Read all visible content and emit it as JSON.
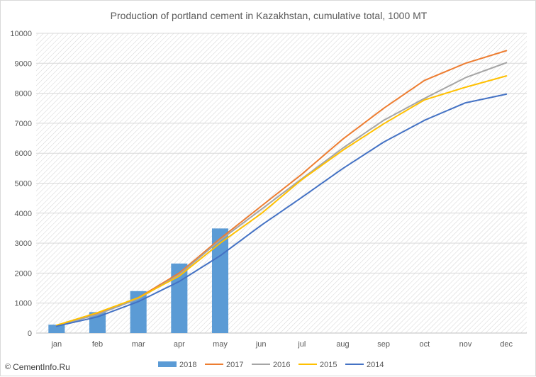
{
  "chart_data": {
    "type": "bar+line",
    "title": "Production of portland cement in Kazakhstan, cumulative total, 1000 MT",
    "categories": [
      "jan",
      "feb",
      "mar",
      "apr",
      "may",
      "jun",
      "jul",
      "aug",
      "sep",
      "oct",
      "nov",
      "dec"
    ],
    "ylim": [
      0,
      10000
    ],
    "yticks": [
      "0",
      "1000",
      "2000",
      "3000",
      "4000",
      "5000",
      "6000",
      "7000",
      "8000",
      "9000",
      "10000"
    ],
    "grid": "horizontal, hatched plot background",
    "legend_position": "bottom",
    "bar_series": {
      "name": "2018",
      "color": "#5b9bd5",
      "values": [
        280,
        700,
        1400,
        2320,
        3490
      ]
    },
    "line_series": [
      {
        "name": "2017",
        "color": "#ed7d31",
        "values": [
          250,
          650,
          1180,
          2000,
          3150,
          4230,
          5300,
          6470,
          7500,
          8430,
          9000,
          9420
        ]
      },
      {
        "name": "2016",
        "color": "#a5a5a5",
        "values": [
          240,
          620,
          1150,
          1950,
          3100,
          4120,
          5150,
          6170,
          7100,
          7830,
          8520,
          9020
        ]
      },
      {
        "name": "2015",
        "color": "#ffc000",
        "values": [
          260,
          680,
          1180,
          1900,
          3000,
          3980,
          5120,
          6100,
          6980,
          7780,
          8200,
          8580
        ]
      },
      {
        "name": "2014",
        "color": "#4472c4",
        "values": [
          230,
          540,
          1050,
          1720,
          2580,
          3590,
          4530,
          5490,
          6370,
          7100,
          7680,
          7970
        ]
      }
    ]
  },
  "watermark": {
    "icon": "copyright-icon",
    "icon_glyph": "©",
    "text": "CementInfo.Ru"
  }
}
